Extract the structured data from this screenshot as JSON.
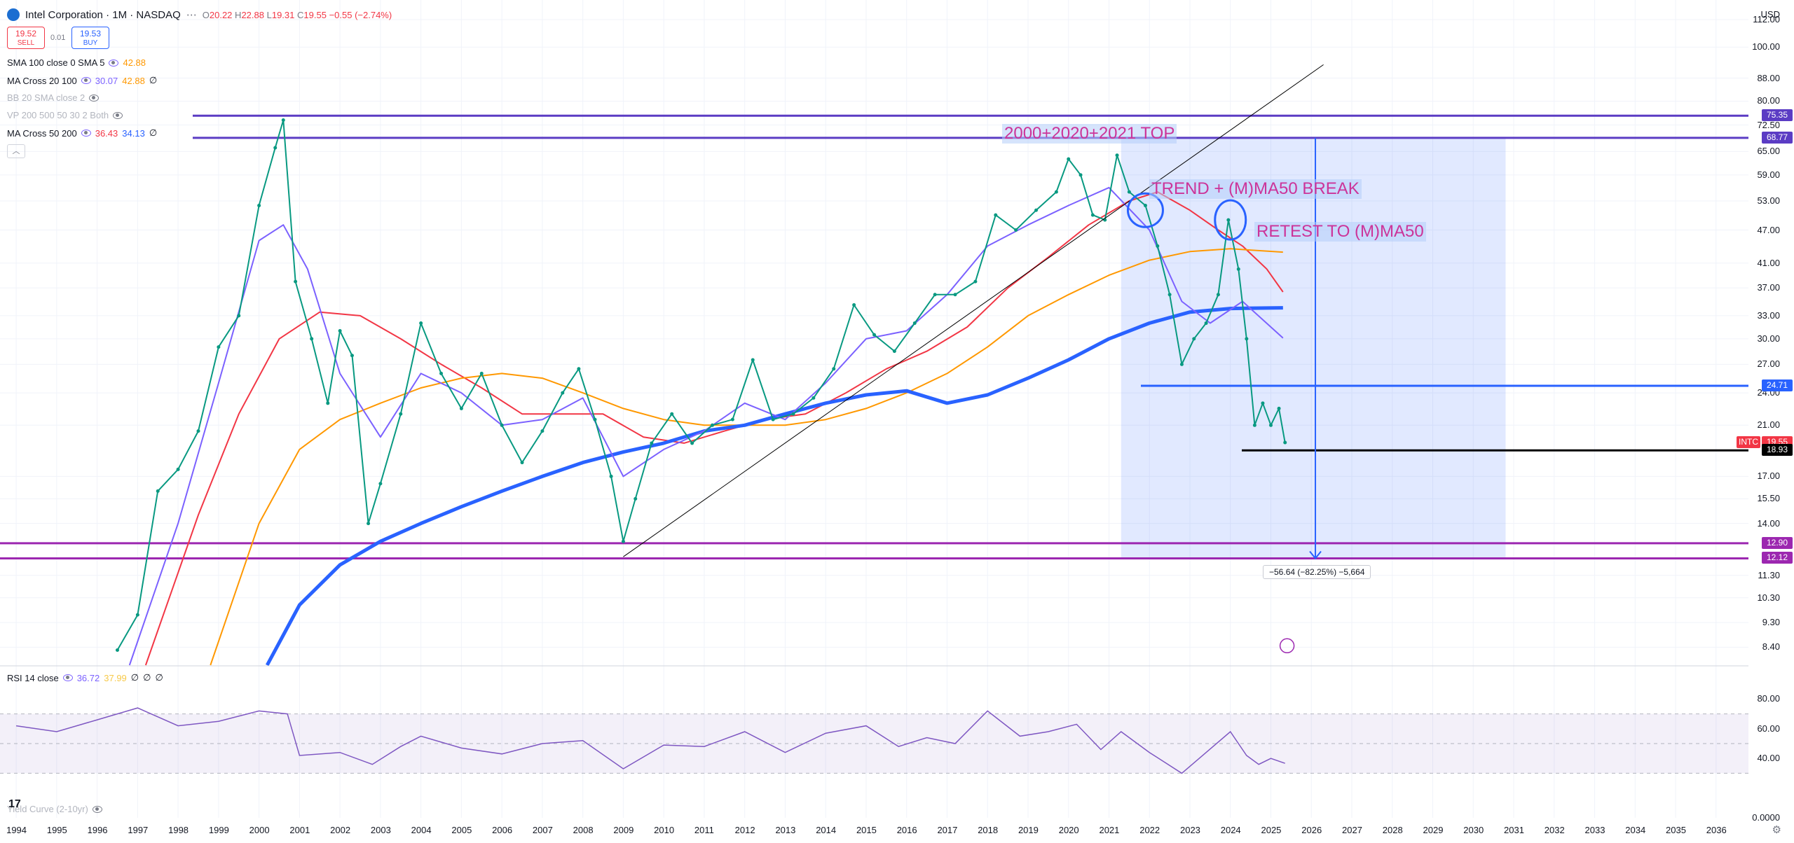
{
  "header": {
    "title": "Intel Corporation · 1M · NASDAQ",
    "ohlc": {
      "o_label": "O",
      "o": "20.22",
      "h_label": "H",
      "h": "22.88",
      "l_label": "L",
      "l": "19.31",
      "c_label": "C",
      "c": "19.55",
      "change": "−0.55 (−2.74%)"
    },
    "currency": "USD",
    "sell_price": "19.52",
    "sell_label": "SELL",
    "spread": "0.01",
    "buy_price": "19.53",
    "buy_label": "BUY"
  },
  "indicators": [
    {
      "name": "SMA 100 close 0 SMA 5",
      "values": [
        "42.88"
      ],
      "colors": [
        "#ff9800"
      ]
    },
    {
      "name": "MA Cross 20 100",
      "values": [
        "30.07",
        "42.88",
        "∅"
      ],
      "colors": [
        "#7b61ff",
        "#ff9800",
        "#131722"
      ]
    },
    {
      "name": "BB 20 SMA close 2",
      "values": [],
      "colors": []
    },
    {
      "name": "VP 200 500 50 30 2 Both",
      "values": [],
      "colors": []
    },
    {
      "name": "MA Cross 50 200",
      "values": [
        "36.43",
        "34.13",
        "∅"
      ],
      "colors": [
        "#f23645",
        "#2962ff",
        "#131722"
      ]
    }
  ],
  "rsi_legend": {
    "name": "RSI 14 close",
    "values": [
      "36.72",
      "37.99",
      "∅",
      "∅",
      "∅"
    ]
  },
  "yield_legend": "Yield Curve (2-10yr)",
  "annotations": {
    "top": "2000+2020+2021 TOP",
    "trend_break": "TREND + (M)MA50 BREAK",
    "retest": "RETEST TO (M)MA50",
    "measure": "−56.64 (−82.25%) −5,664"
  },
  "price_axis_ticks": [
    "112.00",
    "100.00",
    "88.00",
    "80.00",
    "72.50",
    "65.00",
    "59.00",
    "53.00",
    "47.00",
    "41.00",
    "37.00",
    "33.00",
    "30.00",
    "27.00",
    "24.00",
    "21.00",
    "17.00",
    "15.50",
    "14.00",
    "11.30",
    "10.30",
    "9.30",
    "8.40"
  ],
  "price_tags": [
    {
      "value": "75.35",
      "color": "#5b3cc4"
    },
    {
      "value": "68.77",
      "color": "#5b3cc4"
    },
    {
      "value": "24.71",
      "color": "#2962ff"
    },
    {
      "value": "19.55",
      "color": "#f23645",
      "ticker": "INTC"
    },
    {
      "value": "18.93",
      "color": "#000000"
    },
    {
      "value": "12.90",
      "color": "#9c27b0"
    },
    {
      "value": "12.12",
      "color": "#9c27b0"
    }
  ],
  "rsi_axis_ticks": [
    "80.00",
    "60.00",
    "40.00",
    "0.0000"
  ],
  "time_axis_years": [
    "1994",
    "1995",
    "1996",
    "1997",
    "1998",
    "1999",
    "2000",
    "2001",
    "2002",
    "2003",
    "2004",
    "2005",
    "2006",
    "2007",
    "2008",
    "2009",
    "2010",
    "2011",
    "2012",
    "2013",
    "2014",
    "2015",
    "2016",
    "2017",
    "2018",
    "2019",
    "2020",
    "2021",
    "2022",
    "2023",
    "2024",
    "2025",
    "2026",
    "2027",
    "2028",
    "2029",
    "2030",
    "2031",
    "2032",
    "2033",
    "2034",
    "2035",
    "2036"
  ],
  "chart_data": {
    "type": "line",
    "title": "Intel Corporation · 1M · NASDAQ",
    "scale": "log",
    "ylim": [
      7.8,
      118
    ],
    "xlim": [
      1993.6,
      2036.8
    ],
    "grid": true,
    "price_monthly_close": [
      {
        "x": 1996.5,
        "y": 8.3
      },
      {
        "x": 1997.0,
        "y": 9.6
      },
      {
        "x": 1997.5,
        "y": 16.0
      },
      {
        "x": 1998.0,
        "y": 17.5
      },
      {
        "x": 1998.5,
        "y": 20.5
      },
      {
        "x": 1999.0,
        "y": 29.0
      },
      {
        "x": 1999.5,
        "y": 33.0
      },
      {
        "x": 2000.0,
        "y": 52.0
      },
      {
        "x": 2000.4,
        "y": 66.0
      },
      {
        "x": 2000.6,
        "y": 74.0
      },
      {
        "x": 2000.9,
        "y": 38.0
      },
      {
        "x": 2001.3,
        "y": 30.0
      },
      {
        "x": 2001.7,
        "y": 23.0
      },
      {
        "x": 2002.0,
        "y": 31.0
      },
      {
        "x": 2002.3,
        "y": 28.0
      },
      {
        "x": 2002.7,
        "y": 14.0
      },
      {
        "x": 2003.0,
        "y": 16.5
      },
      {
        "x": 2003.5,
        "y": 22.0
      },
      {
        "x": 2004.0,
        "y": 32.0
      },
      {
        "x": 2004.5,
        "y": 26.0
      },
      {
        "x": 2005.0,
        "y": 22.5
      },
      {
        "x": 2005.5,
        "y": 26.0
      },
      {
        "x": 2006.0,
        "y": 21.0
      },
      {
        "x": 2006.5,
        "y": 18.0
      },
      {
        "x": 2007.0,
        "y": 20.5
      },
      {
        "x": 2007.5,
        "y": 24.0
      },
      {
        "x": 2007.9,
        "y": 26.5
      },
      {
        "x": 2008.3,
        "y": 21.5
      },
      {
        "x": 2008.7,
        "y": 17.0
      },
      {
        "x": 2009.0,
        "y": 13.0
      },
      {
        "x": 2009.3,
        "y": 15.5
      },
      {
        "x": 2009.7,
        "y": 19.5
      },
      {
        "x": 2010.2,
        "y": 22.0
      },
      {
        "x": 2010.7,
        "y": 19.5
      },
      {
        "x": 2011.2,
        "y": 21.0
      },
      {
        "x": 2011.7,
        "y": 21.5
      },
      {
        "x": 2012.2,
        "y": 27.5
      },
      {
        "x": 2012.7,
        "y": 21.5
      },
      {
        "x": 2013.2,
        "y": 22.0
      },
      {
        "x": 2013.7,
        "y": 23.5
      },
      {
        "x": 2014.2,
        "y": 26.5
      },
      {
        "x": 2014.7,
        "y": 34.5
      },
      {
        "x": 2015.2,
        "y": 30.5
      },
      {
        "x": 2015.7,
        "y": 28.5
      },
      {
        "x": 2016.2,
        "y": 32.0
      },
      {
        "x": 2016.7,
        "y": 36.0
      },
      {
        "x": 2017.2,
        "y": 36.0
      },
      {
        "x": 2017.7,
        "y": 38.0
      },
      {
        "x": 2018.2,
        "y": 50.0
      },
      {
        "x": 2018.7,
        "y": 47.0
      },
      {
        "x": 2019.2,
        "y": 51.0
      },
      {
        "x": 2019.7,
        "y": 55.0
      },
      {
        "x": 2020.0,
        "y": 63.0
      },
      {
        "x": 2020.3,
        "y": 59.0
      },
      {
        "x": 2020.6,
        "y": 50.0
      },
      {
        "x": 2020.9,
        "y": 49.0
      },
      {
        "x": 2021.2,
        "y": 64.0
      },
      {
        "x": 2021.5,
        "y": 55.0
      },
      {
        "x": 2021.9,
        "y": 52.0
      },
      {
        "x": 2022.2,
        "y": 44.0
      },
      {
        "x": 2022.5,
        "y": 36.0
      },
      {
        "x": 2022.8,
        "y": 27.0
      },
      {
        "x": 2023.1,
        "y": 30.0
      },
      {
        "x": 2023.4,
        "y": 32.0
      },
      {
        "x": 2023.7,
        "y": 36.0
      },
      {
        "x": 2023.95,
        "y": 49.0
      },
      {
        "x": 2024.2,
        "y": 40.0
      },
      {
        "x": 2024.4,
        "y": 30.0
      },
      {
        "x": 2024.6,
        "y": 21.0
      },
      {
        "x": 2024.8,
        "y": 23.0
      },
      {
        "x": 2025.0,
        "y": 21.0
      },
      {
        "x": 2025.2,
        "y": 22.5
      },
      {
        "x": 2025.35,
        "y": 19.55
      }
    ],
    "series": [
      {
        "name": "MA Cross 50 200",
        "color": "#f23645",
        "points": [
          {
            "x": 1997.2,
            "y": 7.8
          },
          {
            "x": 1998.5,
            "y": 14.5
          },
          {
            "x": 1999.5,
            "y": 22.0
          },
          {
            "x": 2000.5,
            "y": 30.0
          },
          {
            "x": 2001.5,
            "y": 33.5
          },
          {
            "x": 2002.5,
            "y": 33.0
          },
          {
            "x": 2003.5,
            "y": 30.0
          },
          {
            "x": 2004.5,
            "y": 27.0
          },
          {
            "x": 2005.5,
            "y": 24.5
          },
          {
            "x": 2006.5,
            "y": 22.0
          },
          {
            "x": 2007.5,
            "y": 22.0
          },
          {
            "x": 2008.5,
            "y": 22.0
          },
          {
            "x": 2009.5,
            "y": 20.0
          },
          {
            "x": 2010.5,
            "y": 19.5
          },
          {
            "x": 2011.5,
            "y": 20.5
          },
          {
            "x": 2012.5,
            "y": 21.5
          },
          {
            "x": 2013.5,
            "y": 22.0
          },
          {
            "x": 2014.5,
            "y": 24.0
          },
          {
            "x": 2015.5,
            "y": 26.5
          },
          {
            "x": 2016.5,
            "y": 28.5
          },
          {
            "x": 2017.5,
            "y": 31.5
          },
          {
            "x": 2018.5,
            "y": 37.0
          },
          {
            "x": 2019.5,
            "y": 42.0
          },
          {
            "x": 2020.5,
            "y": 48.0
          },
          {
            "x": 2021.5,
            "y": 53.0
          },
          {
            "x": 2022.2,
            "y": 55.0
          },
          {
            "x": 2023.0,
            "y": 51.0
          },
          {
            "x": 2023.7,
            "y": 47.0
          },
          {
            "x": 2024.3,
            "y": 44.0
          },
          {
            "x": 2024.9,
            "y": 40.0
          },
          {
            "x": 2025.3,
            "y": 36.4
          }
        ]
      },
      {
        "name": "MA Cross 20 100",
        "color": "#ff9800",
        "points": [
          {
            "x": 1998.8,
            "y": 7.8
          },
          {
            "x": 2000.0,
            "y": 14.0
          },
          {
            "x": 2001.0,
            "y": 19.0
          },
          {
            "x": 2002.0,
            "y": 21.5
          },
          {
            "x": 2003.0,
            "y": 23.0
          },
          {
            "x": 2004.0,
            "y": 24.5
          },
          {
            "x": 2005.0,
            "y": 25.5
          },
          {
            "x": 2006.0,
            "y": 26.0
          },
          {
            "x": 2007.0,
            "y": 25.5
          },
          {
            "x": 2008.0,
            "y": 24.0
          },
          {
            "x": 2009.0,
            "y": 22.5
          },
          {
            "x": 2010.0,
            "y": 21.5
          },
          {
            "x": 2011.0,
            "y": 21.0
          },
          {
            "x": 2012.0,
            "y": 21.0
          },
          {
            "x": 2013.0,
            "y": 21.0
          },
          {
            "x": 2014.0,
            "y": 21.5
          },
          {
            "x": 2015.0,
            "y": 22.5
          },
          {
            "x": 2016.0,
            "y": 24.0
          },
          {
            "x": 2017.0,
            "y": 26.0
          },
          {
            "x": 2018.0,
            "y": 29.0
          },
          {
            "x": 2019.0,
            "y": 33.0
          },
          {
            "x": 2020.0,
            "y": 36.0
          },
          {
            "x": 2021.0,
            "y": 39.0
          },
          {
            "x": 2022.0,
            "y": 41.5
          },
          {
            "x": 2023.0,
            "y": 43.0
          },
          {
            "x": 2024.0,
            "y": 43.5
          },
          {
            "x": 2025.3,
            "y": 42.9
          }
        ]
      },
      {
        "name": "MA Cross 50 200",
        "color": "#2962ff",
        "points": [
          {
            "x": 2000.2,
            "y": 7.8
          },
          {
            "x": 2001.0,
            "y": 10.0
          },
          {
            "x": 2002.0,
            "y": 11.8
          },
          {
            "x": 2003.0,
            "y": 13.0
          },
          {
            "x": 2004.0,
            "y": 14.0
          },
          {
            "x": 2005.0,
            "y": 15.0
          },
          {
            "x": 2006.0,
            "y": 16.0
          },
          {
            "x": 2007.0,
            "y": 17.0
          },
          {
            "x": 2008.0,
            "y": 18.0
          },
          {
            "x": 2009.0,
            "y": 18.8
          },
          {
            "x": 2010.0,
            "y": 19.5
          },
          {
            "x": 2011.0,
            "y": 20.5
          },
          {
            "x": 2012.0,
            "y": 21.0
          },
          {
            "x": 2013.0,
            "y": 22.0
          },
          {
            "x": 2014.0,
            "y": 23.0
          },
          {
            "x": 2015.0,
            "y": 23.8
          },
          {
            "x": 2016.0,
            "y": 24.2
          },
          {
            "x": 2017.0,
            "y": 23.0
          },
          {
            "x": 2018.0,
            "y": 23.8
          },
          {
            "x": 2019.0,
            "y": 25.5
          },
          {
            "x": 2020.0,
            "y": 27.5
          },
          {
            "x": 2021.0,
            "y": 30.0
          },
          {
            "x": 2022.0,
            "y": 32.0
          },
          {
            "x": 2023.0,
            "y": 33.5
          },
          {
            "x": 2024.0,
            "y": 34.0
          },
          {
            "x": 2025.3,
            "y": 34.1
          }
        ]
      },
      {
        "name": "MA Cross 20 100",
        "color": "#7b61ff",
        "points": [
          {
            "x": 1996.8,
            "y": 7.8
          },
          {
            "x": 1998.0,
            "y": 14.0
          },
          {
            "x": 1999.0,
            "y": 25.0
          },
          {
            "x": 2000.0,
            "y": 45.0
          },
          {
            "x": 2000.6,
            "y": 48.0
          },
          {
            "x": 2001.2,
            "y": 40.0
          },
          {
            "x": 2002.0,
            "y": 26.0
          },
          {
            "x": 2003.0,
            "y": 20.0
          },
          {
            "x": 2004.0,
            "y": 26.0
          },
          {
            "x": 2005.0,
            "y": 24.0
          },
          {
            "x": 2006.0,
            "y": 21.0
          },
          {
            "x": 2007.0,
            "y": 21.5
          },
          {
            "x": 2008.0,
            "y": 23.5
          },
          {
            "x": 2009.0,
            "y": 17.0
          },
          {
            "x": 2010.0,
            "y": 19.0
          },
          {
            "x": 2011.0,
            "y": 20.5
          },
          {
            "x": 2012.0,
            "y": 23.0
          },
          {
            "x": 2013.0,
            "y": 21.5
          },
          {
            "x": 2014.0,
            "y": 25.0
          },
          {
            "x": 2015.0,
            "y": 30.0
          },
          {
            "x": 2016.0,
            "y": 31.0
          },
          {
            "x": 2017.0,
            "y": 36.0
          },
          {
            "x": 2018.0,
            "y": 44.0
          },
          {
            "x": 2019.0,
            "y": 48.0
          },
          {
            "x": 2020.0,
            "y": 52.0
          },
          {
            "x": 2021.0,
            "y": 56.0
          },
          {
            "x": 2022.0,
            "y": 47.0
          },
          {
            "x": 2022.8,
            "y": 35.0
          },
          {
            "x": 2023.5,
            "y": 32.0
          },
          {
            "x": 2024.3,
            "y": 35.0
          },
          {
            "x": 2025.3,
            "y": 30.1
          }
        ]
      }
    ],
    "horizontal_levels": [
      {
        "y": 75.35,
        "color": "#5b3cc4"
      },
      {
        "y": 68.77,
        "color": "#5b3cc4"
      },
      {
        "y": 24.71,
        "color": "#2962ff"
      },
      {
        "y": 18.93,
        "color": "#000000"
      },
      {
        "y": 12.9,
        "color": "#9c27b0"
      },
      {
        "y": 12.12,
        "color": "#9c27b0"
      }
    ],
    "rsi": {
      "ylim": [
        0,
        100
      ],
      "overbought": 70,
      "oversold": 30,
      "points": [
        {
          "x": 1994.0,
          "y": 62
        },
        {
          "x": 1995.0,
          "y": 58
        },
        {
          "x": 1996.0,
          "y": 66
        },
        {
          "x": 1997.0,
          "y": 74
        },
        {
          "x": 1998.0,
          "y": 62
        },
        {
          "x": 1999.0,
          "y": 65
        },
        {
          "x": 2000.0,
          "y": 72
        },
        {
          "x": 2000.7,
          "y": 70
        },
        {
          "x": 2001.0,
          "y": 42
        },
        {
          "x": 2002.0,
          "y": 44
        },
        {
          "x": 2002.8,
          "y": 36
        },
        {
          "x": 2003.5,
          "y": 48
        },
        {
          "x": 2004.0,
          "y": 55
        },
        {
          "x": 2005.0,
          "y": 47
        },
        {
          "x": 2006.0,
          "y": 43
        },
        {
          "x": 2007.0,
          "y": 50
        },
        {
          "x": 2008.0,
          "y": 52
        },
        {
          "x": 2009.0,
          "y": 33
        },
        {
          "x": 2010.0,
          "y": 49
        },
        {
          "x": 2011.0,
          "y": 48
        },
        {
          "x": 2012.0,
          "y": 58
        },
        {
          "x": 2013.0,
          "y": 44
        },
        {
          "x": 2014.0,
          "y": 57
        },
        {
          "x": 2015.0,
          "y": 62
        },
        {
          "x": 2015.8,
          "y": 48
        },
        {
          "x": 2016.5,
          "y": 54
        },
        {
          "x": 2017.2,
          "y": 50
        },
        {
          "x": 2018.0,
          "y": 72
        },
        {
          "x": 2018.8,
          "y": 55
        },
        {
          "x": 2019.5,
          "y": 58
        },
        {
          "x": 2020.2,
          "y": 63
        },
        {
          "x": 2020.8,
          "y": 46
        },
        {
          "x": 2021.3,
          "y": 58
        },
        {
          "x": 2022.0,
          "y": 44
        },
        {
          "x": 2022.8,
          "y": 30
        },
        {
          "x": 2023.4,
          "y": 44
        },
        {
          "x": 2024.0,
          "y": 58
        },
        {
          "x": 2024.4,
          "y": 42
        },
        {
          "x": 2024.7,
          "y": 36
        },
        {
          "x": 2025.0,
          "y": 40
        },
        {
          "x": 2025.35,
          "y": 36.72
        }
      ]
    }
  }
}
